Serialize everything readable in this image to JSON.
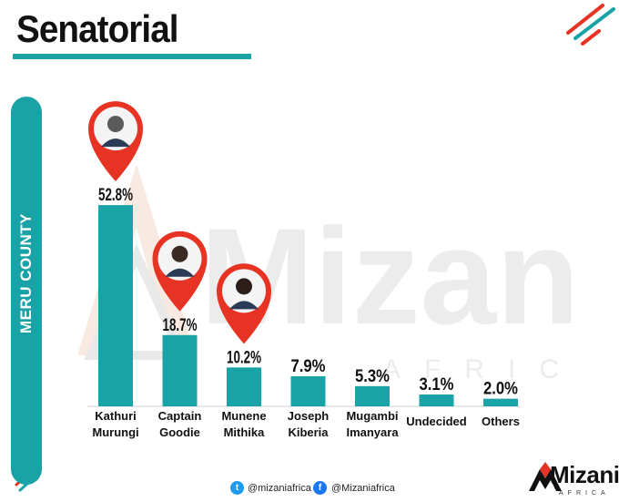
{
  "title": "Senatorial",
  "county_label": "MERU COUNTY",
  "watermark": {
    "text": "Mizani",
    "sub": "AFRICA"
  },
  "footer": {
    "twitter_handle": "@mizaniafrica",
    "facebook_handle": "@Mizaniafrica"
  },
  "brand": {
    "name": "Mizani",
    "sub": "AFRICA"
  },
  "colors": {
    "bar": "#1aa3a6",
    "accent_red": "#e63323",
    "accent_green": "#1aa3a6"
  },
  "icons": [
    "twitter-icon",
    "facebook-icon",
    "location-pin-icon",
    "person-photo-icon"
  ],
  "chart_data": {
    "type": "bar",
    "title": "",
    "xlabel": "",
    "ylabel": "",
    "categories": [
      [
        "Kathuri",
        "Murungi"
      ],
      [
        "Captain",
        "Goodie"
      ],
      [
        "Munene",
        "Mithika"
      ],
      [
        "Joseph",
        "Kiberia"
      ],
      [
        "Mugambi",
        "Imanyara"
      ],
      [
        "Undecided"
      ],
      [
        "Others"
      ]
    ],
    "values": [
      52.8,
      18.7,
      10.2,
      7.9,
      5.3,
      3.1,
      2.0
    ],
    "data_labels": [
      "52.8%",
      "18.7%",
      "10.2%",
      "7.9%",
      "5.3%",
      "3.1%",
      "2.0%"
    ],
    "unit": "%",
    "ylim": [
      0,
      60
    ],
    "photo_markers_on": [
      "Kathuri Murungi",
      "Captain Goodie",
      "Munene Mithika"
    ]
  }
}
